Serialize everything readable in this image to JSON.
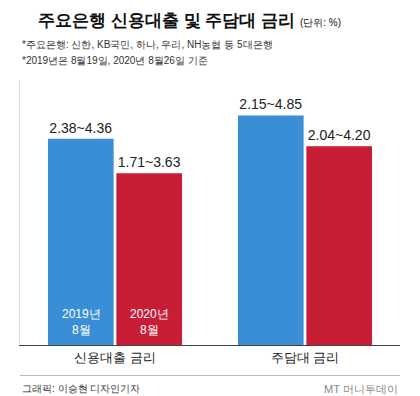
{
  "chart_data": {
    "type": "bar",
    "title": "주요은행 신용대출 및 주담대 금리",
    "subtitle": "(단위: %)",
    "notes": [
      "*주요은행: 신한, KB국민, 하나, 우리, NH농협 등 5대은행",
      "*2019년은 8월19일, 2020년 8월26일 기준"
    ],
    "categories": [
      "신용대출 금리",
      "주담대 금리"
    ],
    "series": [
      {
        "name": "2019년 8월",
        "color": "#3a8ed6",
        "values": [
          4.36,
          4.85
        ],
        "value_labels": [
          "2.38~4.36",
          "2.15~4.85"
        ]
      },
      {
        "name": "2020년 8월",
        "color": "#c81e35",
        "values": [
          3.63,
          4.2
        ],
        "value_labels": [
          "1.71~3.63",
          "2.04~4.20"
        ]
      }
    ],
    "ylim": [
      0,
      5.6
    ],
    "yticks": [],
    "tick_labels": "x",
    "grid": false,
    "data_labels": true,
    "source": "그래픽: 이승현 디자인기자",
    "logo": "MT 머니투데이"
  }
}
